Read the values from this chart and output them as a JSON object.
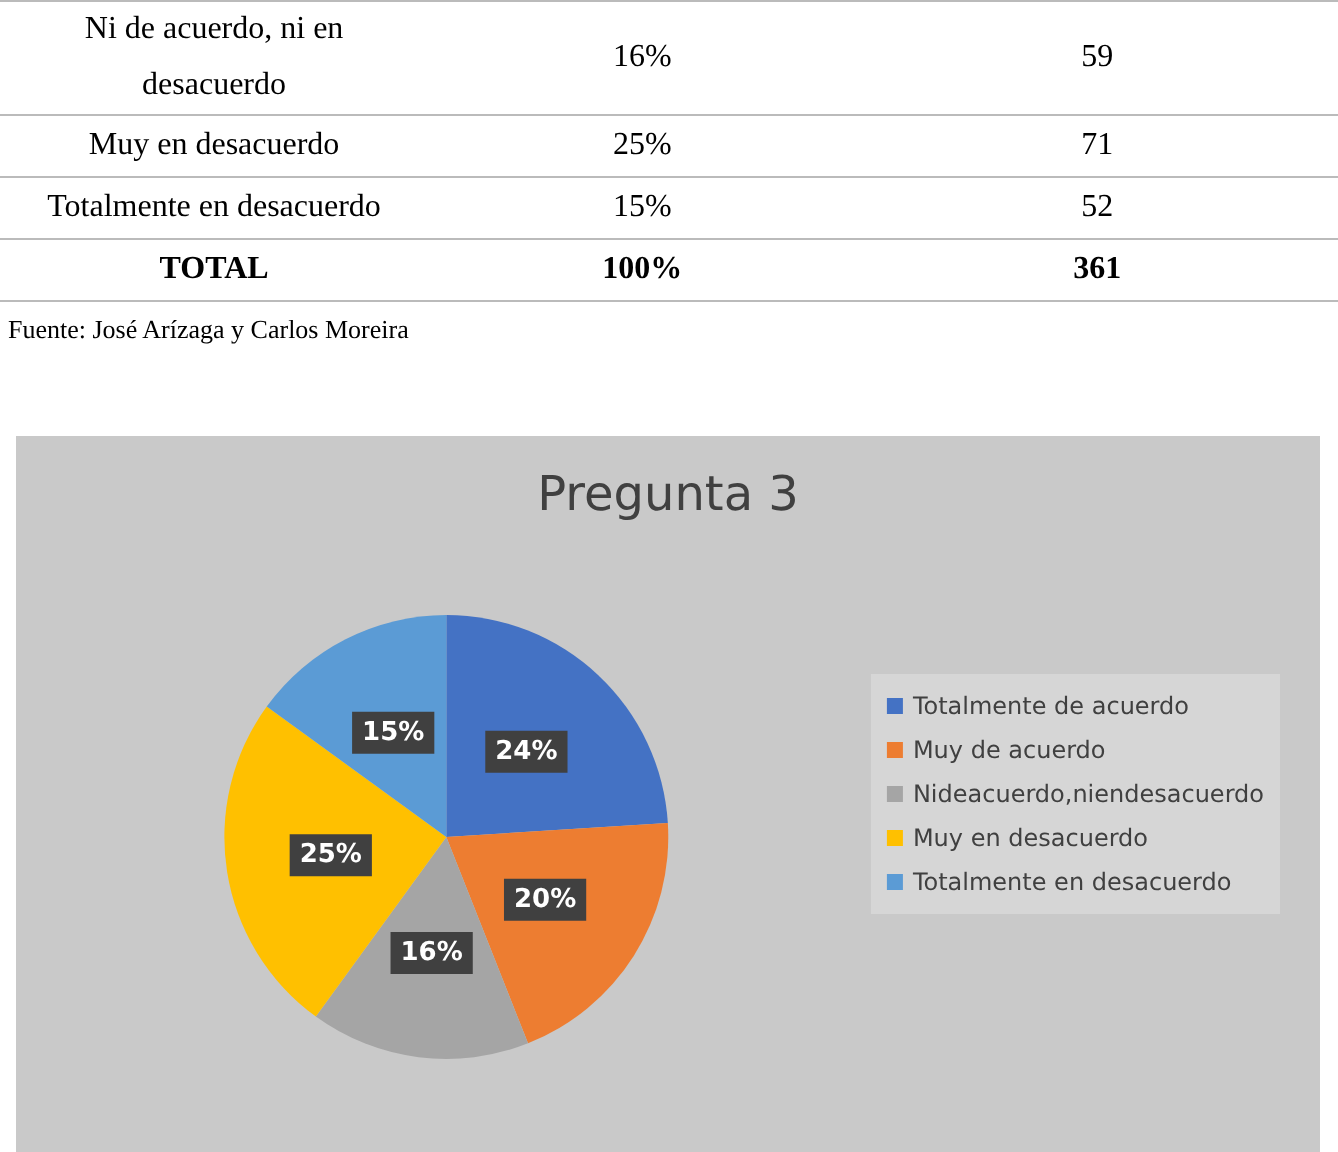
{
  "chart_data": {
    "type": "pie",
    "title": "Pregunta 3",
    "categories": [
      "Totalmente de acuerdo",
      "Muy de acuerdo",
      "Nideacuerdo,niendesacuerdo",
      "Muy en desacuerdo",
      "Totalmente en desacuerdo"
    ],
    "values": [
      24,
      20,
      16,
      25,
      15
    ],
    "colors": [
      "#4472c4",
      "#ed7d31",
      "#a5a5a5",
      "#ffc000",
      "#5b9bd5"
    ],
    "value_labels": [
      "24%",
      "20%",
      "16%",
      "25%",
      "15%"
    ],
    "legend": "right",
    "annotations": [
      "Ni de acuerdo, ni en desacuerdo",
      "16%",
      "59",
      "Muy en desacuerdo",
      "25%",
      "71",
      "Totalmente en desacuerdo",
      "15%",
      "52",
      "TOTAL",
      "100%",
      "361",
      "Fuente: José Arízaga y Carlos Moreira"
    ]
  }
}
